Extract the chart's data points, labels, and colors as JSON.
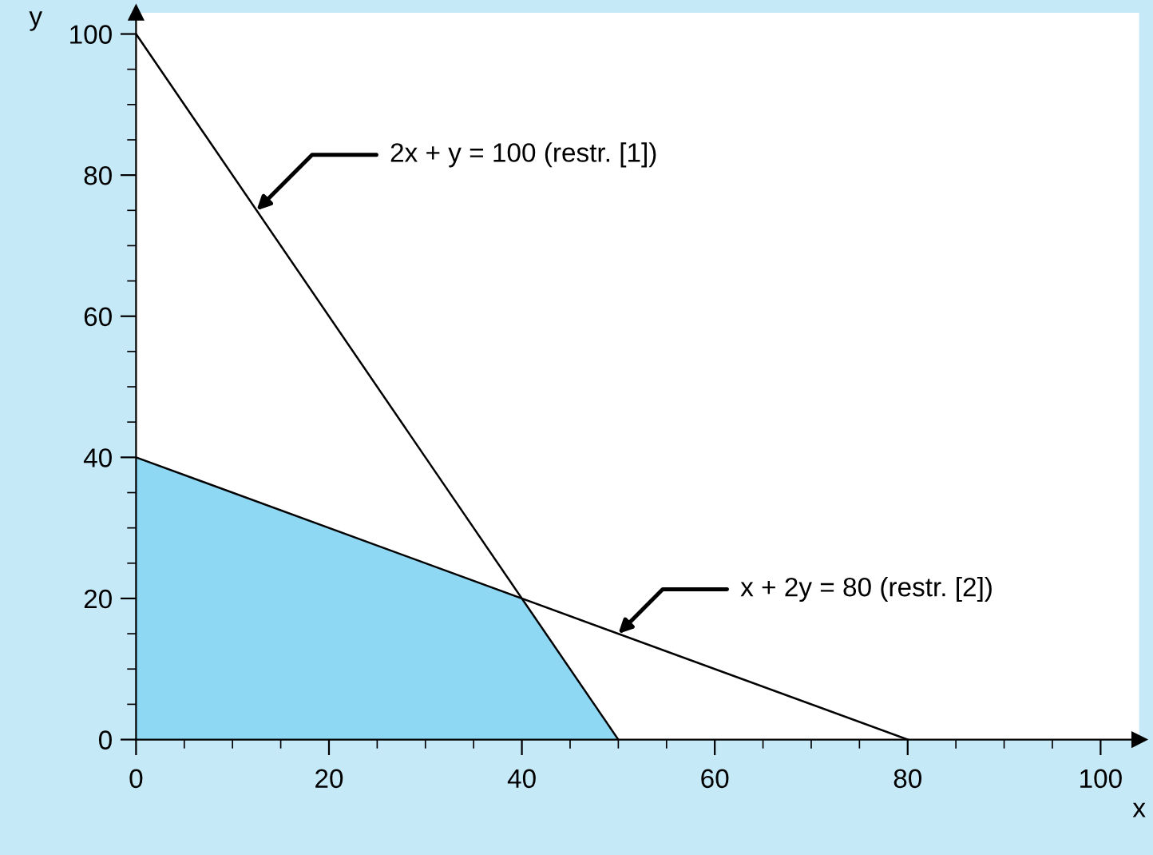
{
  "chart_data": {
    "type": "line",
    "xlabel": "x",
    "ylabel": "y",
    "xlim": [
      0,
      104
    ],
    "ylim": [
      0,
      103
    ],
    "xticks": [
      0,
      20,
      40,
      60,
      80,
      100
    ],
    "yticks": [
      0,
      20,
      40,
      60,
      80,
      100
    ],
    "grid": false,
    "legend": false,
    "marker": "none",
    "line_style": "solid",
    "series": [
      {
        "type": "area",
        "color": "#8fd8f4",
        "x": [
          0,
          0,
          40,
          50
        ],
        "values": [
          0,
          40,
          20,
          0
        ]
      },
      {
        "color": "#000000",
        "x": [
          0,
          50
        ],
        "values": [
          100,
          0
        ]
      },
      {
        "color": "#000000",
        "x": [
          0,
          80
        ],
        "values": [
          40,
          0
        ]
      }
    ],
    "annotations": [
      {
        "text": "2x + y = 100 (restr. [1])",
        "x": 12.5,
        "y": 75
      },
      {
        "text": "x + 2y = 80 (restr. [2])",
        "x": 50,
        "y": 15
      }
    ]
  }
}
